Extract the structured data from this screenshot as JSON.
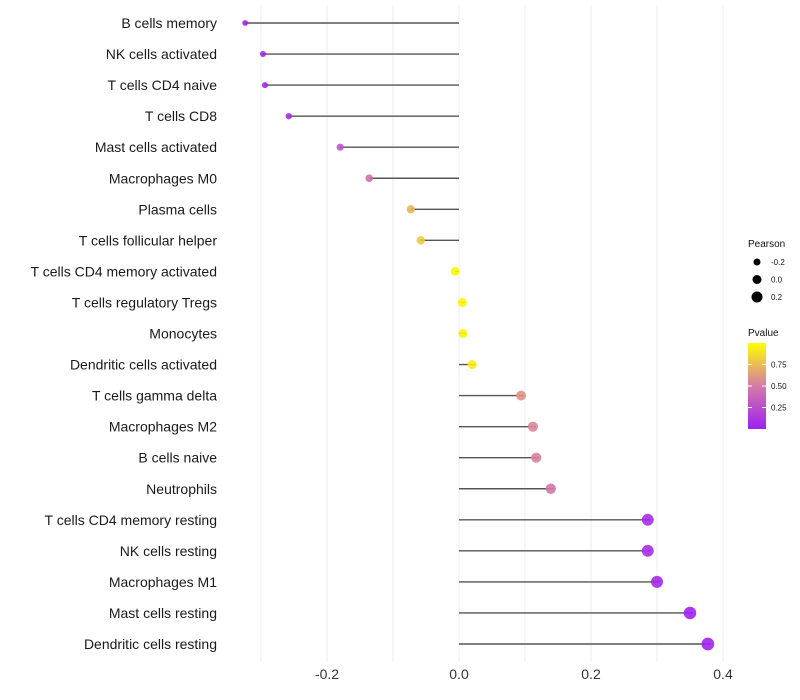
{
  "chart_data": {
    "type": "lollipop",
    "title": "",
    "xlabel": "",
    "ylabel": "",
    "xlim": [
      -0.33,
      0.5
    ],
    "x_ticks": [
      -0.2,
      0.0,
      0.2,
      0.4
    ],
    "x_tick_labels": [
      "-0.2",
      "0.0",
      "0.2",
      "0.4"
    ],
    "grid": true,
    "categories": [
      "B cells memory",
      "NK cells activated",
      "T cells CD4 naive",
      "T cells CD8",
      "Mast cells activated",
      "Macrophages M0",
      "Plasma cells",
      "T cells follicular helper",
      "T cells CD4 memory activated",
      "T cells regulatory  Tregs",
      "Monocytes",
      "Dendritic cells activated",
      "T cells gamma delta",
      "Macrophages M2",
      "B cells naive",
      "Neutrophils",
      "T cells CD4 memory resting",
      "NK cells resting",
      "Macrophages M1",
      "Mast cells resting",
      "Dendritic cells resting"
    ],
    "pearson": [
      -0.324,
      -0.297,
      -0.294,
      -0.258,
      -0.18,
      -0.136,
      -0.073,
      -0.058,
      -0.006,
      0.005,
      0.006,
      0.02,
      0.094,
      0.112,
      0.117,
      0.139,
      0.286,
      0.286,
      0.3,
      0.35,
      0.377
    ],
    "pvalue": [
      0.03,
      0.04,
      0.05,
      0.08,
      0.3,
      0.45,
      0.72,
      0.8,
      0.97,
      0.97,
      0.96,
      0.93,
      0.6,
      0.55,
      0.53,
      0.48,
      0.07,
      0.07,
      0.05,
      0.02,
      0.01
    ],
    "legend_size": {
      "title": "Pearson",
      "values": [
        -0.2,
        0.0,
        0.2
      ],
      "labels": [
        "-0.2",
        "0.0",
        "0.2"
      ],
      "placement": "right"
    },
    "legend_color": {
      "title": "Pvalue",
      "labels": [
        "0.75",
        "0.50",
        "0.25"
      ],
      "values": [
        0.75,
        0.5,
        0.25
      ],
      "colors": [
        "#a020f0",
        "#d57aa8",
        "#ffff00"
      ],
      "placement": "right"
    }
  }
}
